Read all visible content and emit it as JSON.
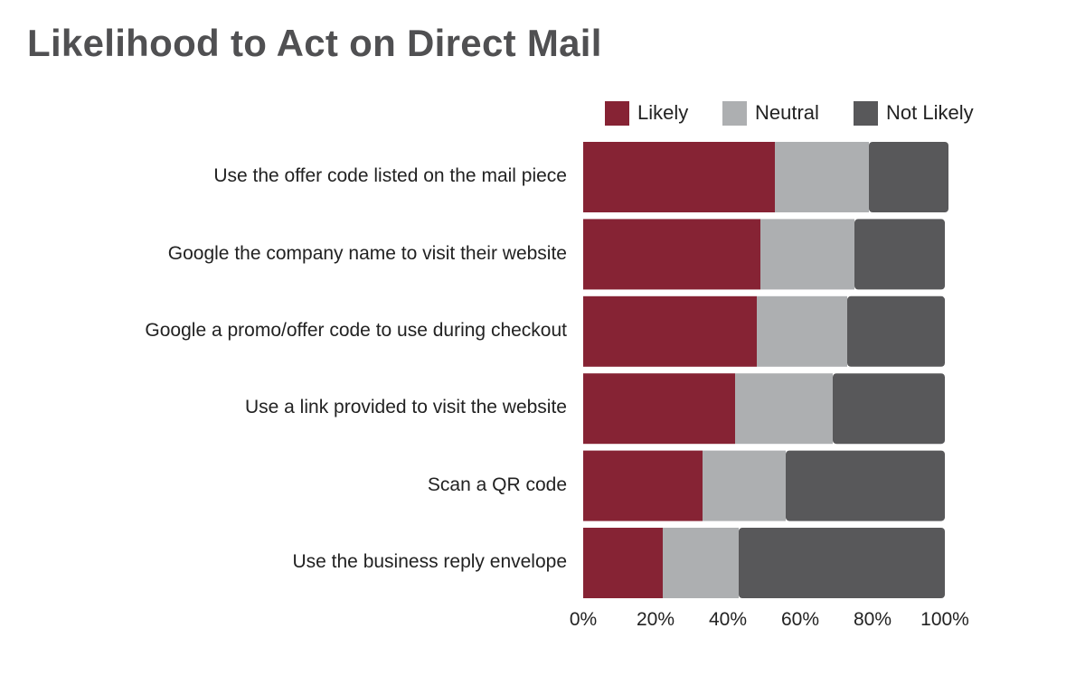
{
  "chart_data": {
    "type": "bar",
    "orientation": "horizontal",
    "stacked": true,
    "title": "Likelihood to Act on Direct Mail",
    "categories": [
      "Use the offer code listed on the mail piece",
      "Google the company name to visit their website",
      "Google a promo/offer code to use during checkout",
      "Use a link provided to visit the website",
      "Scan a QR code",
      "Use the business reply envelope"
    ],
    "series": [
      {
        "name": "Likely",
        "color": "#862334",
        "values": [
          53,
          49,
          48,
          42,
          33,
          22
        ]
      },
      {
        "name": "Neutral",
        "color": "#adafb1",
        "values": [
          26,
          26,
          25,
          27,
          23,
          21
        ]
      },
      {
        "name": "Not Likely",
        "color": "#58585a",
        "values": [
          22,
          25,
          27,
          31,
          44,
          57
        ]
      }
    ],
    "xlim": [
      0,
      100
    ],
    "xticks": [
      "0%",
      "20%",
      "40%",
      "60%",
      "80%",
      "100%"
    ],
    "legend_position": "top-right",
    "grid": false
  }
}
